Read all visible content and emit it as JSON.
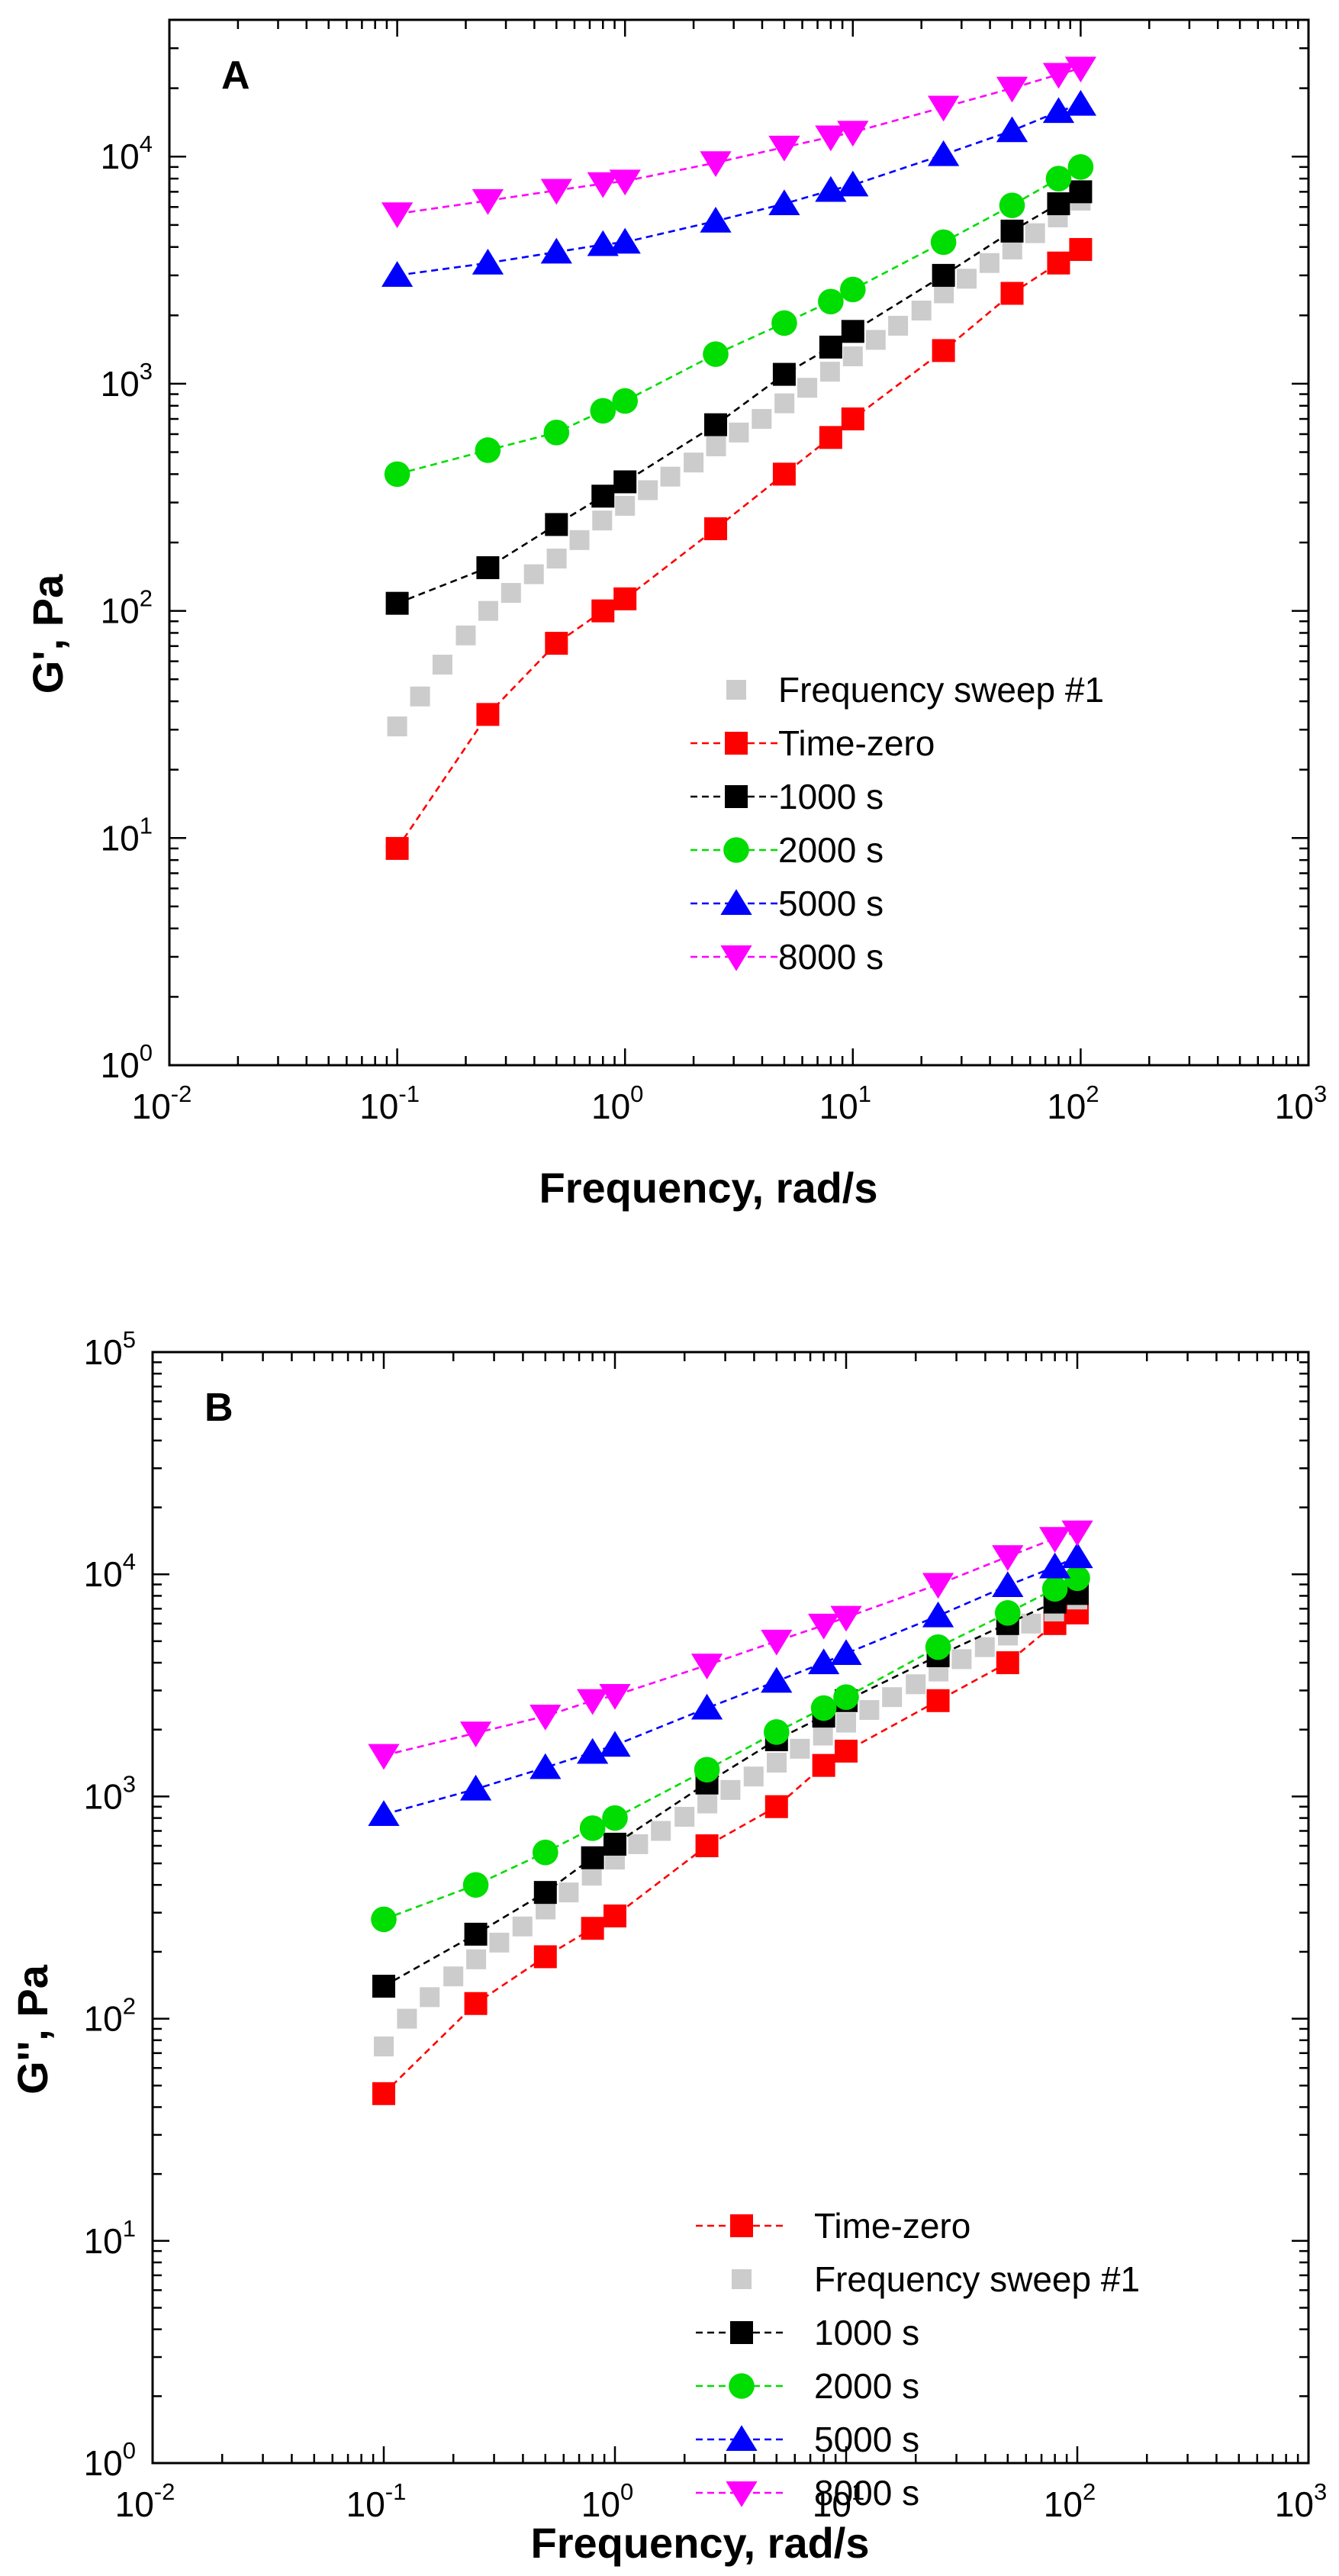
{
  "chart_data": [
    {
      "type": "scatter",
      "panel_label": "A",
      "xlabel": "Frequency, rad/s",
      "ylabel": "G', Pa",
      "xscale": "log",
      "yscale": "log",
      "xlim": [
        0.01,
        1000
      ],
      "ylim": [
        1,
        40000
      ],
      "x_ticks": [
        0.01,
        0.1,
        1,
        10,
        100,
        1000
      ],
      "y_ticks": [
        1,
        10,
        100,
        1000,
        10000
      ],
      "tick_base": "10",
      "x_tick_exponents": [
        "-2",
        "-1",
        "0",
        "1",
        "2",
        "3"
      ],
      "y_tick_exponents": [
        "0",
        "1",
        "2",
        "3",
        "4"
      ],
      "grid": false,
      "legend_position": "bottom-right",
      "series": [
        {
          "name": "Frequency sweep #1",
          "color": "#cccccc",
          "marker": "square",
          "line": false,
          "x": [
            0.1,
            0.126,
            0.158,
            0.2,
            0.251,
            0.316,
            0.398,
            0.501,
            0.631,
            0.794,
            1,
            1.26,
            1.58,
            2,
            2.51,
            3.16,
            3.98,
            5.01,
            6.31,
            7.94,
            10,
            12.6,
            15.8,
            20,
            25.1,
            31.6,
            39.8,
            50.1,
            63.1,
            79.4,
            100
          ],
          "y": [
            31,
            42,
            58,
            78,
            100,
            120,
            145,
            170,
            205,
            250,
            290,
            340,
            390,
            450,
            530,
            610,
            700,
            820,
            960,
            1130,
            1320,
            1560,
            1800,
            2100,
            2500,
            2900,
            3400,
            3900,
            4600,
            5400,
            6400
          ]
        },
        {
          "name": "Time-zero",
          "color": "#ff0000",
          "marker": "square",
          "line": true,
          "x": [
            0.1,
            0.25,
            0.5,
            0.8,
            1,
            2.5,
            5,
            8,
            10,
            25,
            50,
            80,
            100
          ],
          "y": [
            9,
            35,
            72,
            100,
            113,
            230,
            400,
            580,
            700,
            1400,
            2500,
            3400,
            3900
          ]
        },
        {
          "name": "1000 s",
          "color": "#000000",
          "marker": "square",
          "line": true,
          "x": [
            0.1,
            0.25,
            0.5,
            0.8,
            1,
            2.5,
            5,
            8,
            10,
            25,
            50,
            80,
            100
          ],
          "y": [
            108,
            155,
            240,
            320,
            370,
            660,
            1100,
            1450,
            1700,
            3000,
            4700,
            6200,
            7000
          ]
        },
        {
          "name": "2000 s",
          "color": "#00dd00",
          "marker": "circle",
          "line": true,
          "x": [
            0.1,
            0.25,
            0.5,
            0.8,
            1,
            2.5,
            5,
            8,
            10,
            25,
            50,
            80,
            100
          ],
          "y": [
            400,
            510,
            610,
            760,
            840,
            1350,
            1850,
            2300,
            2600,
            4200,
            6100,
            8000,
            9000
          ]
        },
        {
          "name": "5000 s",
          "color": "#0000ff",
          "marker": "triangle-up",
          "line": true,
          "x": [
            0.1,
            0.25,
            0.5,
            0.8,
            1,
            2.5,
            5,
            8,
            10,
            25,
            50,
            80,
            100
          ],
          "y": [
            3000,
            3400,
            3800,
            4100,
            4200,
            5200,
            6200,
            7100,
            7500,
            10200,
            13000,
            15800,
            17000
          ]
        },
        {
          "name": "8000 s",
          "color": "#ff00ff",
          "marker": "triangle-down",
          "line": true,
          "x": [
            0.1,
            0.25,
            0.5,
            0.8,
            1,
            2.5,
            5,
            8,
            10,
            25,
            50,
            80,
            100
          ],
          "y": [
            5600,
            6400,
            7100,
            7600,
            7800,
            9400,
            11000,
            12200,
            12800,
            16500,
            20000,
            23000,
            24500
          ]
        }
      ]
    },
    {
      "type": "scatter",
      "panel_label": "B",
      "xlabel": "Frequency, rad/s",
      "ylabel": "G'', Pa",
      "xscale": "log",
      "yscale": "log",
      "xlim": [
        0.01,
        1000
      ],
      "ylim": [
        1,
        100000
      ],
      "x_ticks": [
        0.01,
        0.1,
        1,
        10,
        100,
        1000
      ],
      "y_ticks": [
        1,
        10,
        100,
        1000,
        10000,
        100000
      ],
      "tick_base": "10",
      "x_tick_exponents": [
        "-2",
        "-1",
        "0",
        "1",
        "2",
        "3"
      ],
      "y_tick_exponents": [
        "0",
        "1",
        "2",
        "3",
        "4",
        "5"
      ],
      "grid": false,
      "legend_position": "bottom-right",
      "series": [
        {
          "name": "Time-zero",
          "color": "#ff0000",
          "marker": "square",
          "line": true,
          "x": [
            0.1,
            0.25,
            0.5,
            0.8,
            1,
            2.5,
            5,
            8,
            10,
            25,
            50,
            80,
            100
          ],
          "y": [
            46,
            117,
            190,
            255,
            290,
            600,
            900,
            1380,
            1600,
            2700,
            4000,
            6000,
            6700
          ]
        },
        {
          "name": "Frequency sweep #1",
          "color": "#cccccc",
          "marker": "square",
          "line": false,
          "x": [
            0.1,
            0.126,
            0.158,
            0.2,
            0.251,
            0.316,
            0.398,
            0.501,
            0.631,
            0.794,
            1,
            1.26,
            1.58,
            2,
            2.51,
            3.16,
            3.98,
            5.01,
            6.31,
            7.94,
            10,
            12.6,
            15.8,
            20,
            25.1,
            31.6,
            39.8,
            50.1,
            63.1,
            79.4,
            100
          ],
          "y": [
            75,
            100,
            125,
            155,
            185,
            220,
            260,
            310,
            370,
            440,
            520,
            610,
            700,
            810,
            930,
            1070,
            1230,
            1420,
            1640,
            1880,
            2150,
            2450,
            2800,
            3200,
            3650,
            4150,
            4700,
            5300,
            6000,
            6800,
            7700
          ]
        },
        {
          "name": "1000 s",
          "color": "#000000",
          "marker": "square",
          "line": true,
          "x": [
            0.1,
            0.25,
            0.5,
            0.8,
            1,
            2.5,
            5,
            8,
            10,
            25,
            50,
            80,
            100
          ],
          "y": [
            140,
            240,
            370,
            530,
            610,
            1150,
            1800,
            2300,
            2700,
            4300,
            6000,
            7500,
            8200
          ]
        },
        {
          "name": "2000 s",
          "color": "#00dd00",
          "marker": "circle",
          "line": true,
          "x": [
            0.1,
            0.25,
            0.5,
            0.8,
            1,
            2.5,
            5,
            8,
            10,
            25,
            50,
            80,
            100
          ],
          "y": [
            280,
            400,
            560,
            720,
            800,
            1320,
            1950,
            2500,
            2800,
            4700,
            6700,
            8600,
            9600
          ]
        },
        {
          "name": "5000 s",
          "color": "#0000ff",
          "marker": "triangle-up",
          "line": true,
          "x": [
            0.1,
            0.25,
            0.5,
            0.8,
            1,
            2.5,
            5,
            8,
            10,
            25,
            50,
            80,
            100
          ],
          "y": [
            830,
            1080,
            1350,
            1580,
            1700,
            2500,
            3300,
            4000,
            4400,
            6500,
            8900,
            10800,
            12000
          ]
        },
        {
          "name": "8000 s",
          "color": "#ff00ff",
          "marker": "triangle-down",
          "line": true,
          "x": [
            0.1,
            0.25,
            0.5,
            0.8,
            1,
            2.5,
            5,
            8,
            10,
            25,
            50,
            80,
            100
          ],
          "y": [
            1530,
            1930,
            2300,
            2700,
            2850,
            3900,
            5000,
            5900,
            6400,
            9000,
            12000,
            14500,
            15500
          ]
        }
      ]
    }
  ]
}
